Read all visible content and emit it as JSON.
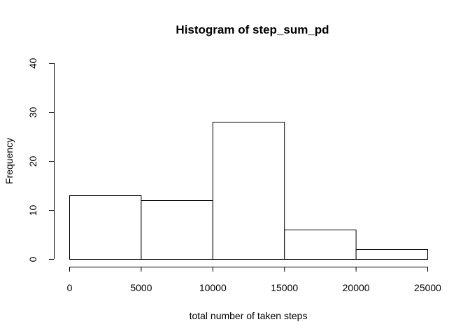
{
  "chart_data": {
    "type": "bar",
    "title": "Histogram of step_sum_pd",
    "xlabel": "total number of taken steps",
    "ylabel": "Frequency",
    "bins": [
      {
        "start": 0,
        "end": 5000,
        "value": 13
      },
      {
        "start": 5000,
        "end": 10000,
        "value": 12
      },
      {
        "start": 10000,
        "end": 15000,
        "value": 28
      },
      {
        "start": 15000,
        "end": 20000,
        "value": 6
      },
      {
        "start": 20000,
        "end": 25000,
        "value": 2
      }
    ],
    "xlim": [
      0,
      25000
    ],
    "ylim": [
      0,
      40
    ],
    "x_ticks": [
      "0",
      "5000",
      "10000",
      "15000",
      "20000",
      "25000"
    ],
    "y_ticks": [
      "0",
      "10",
      "20",
      "30",
      "40"
    ],
    "grid": false,
    "colors": {
      "bar_fill": "#ffffff",
      "bar_stroke": "#000000"
    }
  }
}
